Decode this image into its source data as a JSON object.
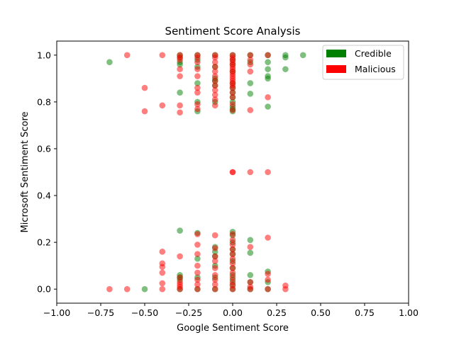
{
  "chart_data": {
    "type": "scatter",
    "title": "Sentiment Score Analysis",
    "xlabel": "Google Sentiment Score",
    "ylabel": "Microsoft Sentiment Score",
    "xlim": [
      -1.0,
      1.0
    ],
    "ylim": [
      -0.06,
      1.06
    ],
    "x_ticks": [
      -1.0,
      -0.75,
      -0.5,
      -0.25,
      0.0,
      0.25,
      0.5,
      0.75,
      1.0
    ],
    "x_tick_labels": [
      "−1.00",
      "−0.75",
      "−0.50",
      "−0.25",
      "0.00",
      "0.25",
      "0.50",
      "0.75",
      "1.00"
    ],
    "y_ticks": [
      0.0,
      0.2,
      0.4,
      0.6,
      0.8,
      1.0
    ],
    "y_tick_labels": [
      "0.0",
      "0.2",
      "0.4",
      "0.6",
      "0.8",
      "1.0"
    ],
    "grid": false,
    "legend_position": "top-right",
    "series": [
      {
        "name": "Credible",
        "color": "#008000",
        "alpha": 0.5,
        "points": [
          [
            -0.7,
            0.97
          ],
          [
            -0.5,
            0.0
          ],
          [
            -0.3,
            1.0
          ],
          [
            -0.3,
            0.99
          ],
          [
            -0.3,
            0.97
          ],
          [
            -0.3,
            0.96
          ],
          [
            -0.3,
            0.84
          ],
          [
            -0.3,
            0.25
          ],
          [
            -0.3,
            0.06
          ],
          [
            -0.3,
            0.05
          ],
          [
            -0.3,
            0.04
          ],
          [
            -0.3,
            0.0
          ],
          [
            -0.2,
            1.0
          ],
          [
            -0.2,
            0.98
          ],
          [
            -0.2,
            0.95
          ],
          [
            -0.2,
            0.88
          ],
          [
            -0.2,
            0.8
          ],
          [
            -0.2,
            0.76
          ],
          [
            -0.2,
            0.24
          ],
          [
            -0.2,
            0.13
          ],
          [
            -0.2,
            0.05
          ],
          [
            -0.2,
            0.0
          ],
          [
            -0.1,
            1.0
          ],
          [
            -0.1,
            0.95
          ],
          [
            -0.1,
            0.9
          ],
          [
            -0.1,
            0.89
          ],
          [
            -0.1,
            0.87
          ],
          [
            -0.1,
            0.8
          ],
          [
            -0.1,
            0.18
          ],
          [
            -0.1,
            0.16
          ],
          [
            -0.1,
            0.14
          ],
          [
            -0.1,
            0.1
          ],
          [
            -0.1,
            0.05
          ],
          [
            -0.1,
            0.0
          ],
          [
            0.0,
            1.0
          ],
          [
            0.0,
            0.98
          ],
          [
            0.0,
            0.96
          ],
          [
            0.0,
            0.93
          ],
          [
            0.0,
            0.88
          ],
          [
            0.0,
            0.86
          ],
          [
            0.0,
            0.84
          ],
          [
            0.0,
            0.82
          ],
          [
            0.0,
            0.8
          ],
          [
            0.0,
            0.78
          ],
          [
            0.0,
            0.77
          ],
          [
            0.0,
            0.76
          ],
          [
            0.0,
            0.245
          ],
          [
            0.0,
            0.23
          ],
          [
            0.0,
            0.2
          ],
          [
            0.0,
            0.17
          ],
          [
            0.0,
            0.15
          ],
          [
            0.0,
            0.12
          ],
          [
            0.0,
            0.09
          ],
          [
            0.0,
            0.06
          ],
          [
            0.0,
            0.04
          ],
          [
            0.0,
            0.02
          ],
          [
            0.0,
            0.0
          ],
          [
            0.1,
            1.0
          ],
          [
            0.1,
            0.97
          ],
          [
            0.1,
            0.88
          ],
          [
            0.1,
            0.835
          ],
          [
            0.1,
            0.21
          ],
          [
            0.1,
            0.155
          ],
          [
            0.1,
            0.06
          ],
          [
            0.1,
            0.03
          ],
          [
            0.1,
            0.0
          ],
          [
            0.2,
            1.0
          ],
          [
            0.2,
            0.97
          ],
          [
            0.2,
            0.94
          ],
          [
            0.2,
            0.91
          ],
          [
            0.2,
            0.9
          ],
          [
            0.2,
            0.78
          ],
          [
            0.2,
            0.075
          ],
          [
            0.2,
            0.03
          ],
          [
            0.2,
            0.0
          ],
          [
            0.3,
            1.0
          ],
          [
            0.3,
            0.99
          ],
          [
            0.3,
            0.94
          ],
          [
            0.4,
            1.0
          ]
        ]
      },
      {
        "name": "Malicious",
        "color": "#ff0000",
        "alpha": 0.5,
        "points": [
          [
            -0.7,
            0.0
          ],
          [
            -0.6,
            1.0
          ],
          [
            -0.6,
            0.0
          ],
          [
            -0.5,
            0.86
          ],
          [
            -0.5,
            0.76
          ],
          [
            -0.4,
            1.0
          ],
          [
            -0.4,
            0.785
          ],
          [
            -0.4,
            0.16
          ],
          [
            -0.4,
            0.11
          ],
          [
            -0.4,
            0.095
          ],
          [
            -0.4,
            0.07
          ],
          [
            -0.4,
            0.025
          ],
          [
            -0.4,
            0.0
          ],
          [
            -0.3,
            1.0
          ],
          [
            -0.3,
            0.99
          ],
          [
            -0.3,
            0.98
          ],
          [
            -0.3,
            0.94
          ],
          [
            -0.3,
            0.91
          ],
          [
            -0.3,
            0.785
          ],
          [
            -0.3,
            0.755
          ],
          [
            -0.3,
            0.14
          ],
          [
            -0.3,
            0.05
          ],
          [
            -0.3,
            0.03
          ],
          [
            -0.3,
            0.02
          ],
          [
            -0.3,
            0.01
          ],
          [
            -0.3,
            0.0
          ],
          [
            -0.2,
            1.0
          ],
          [
            -0.2,
            0.99
          ],
          [
            -0.2,
            0.97
          ],
          [
            -0.2,
            0.94
          ],
          [
            -0.2,
            0.91
          ],
          [
            -0.2,
            0.86
          ],
          [
            -0.2,
            0.84
          ],
          [
            -0.2,
            0.79
          ],
          [
            -0.2,
            0.77
          ],
          [
            -0.2,
            0.235
          ],
          [
            -0.2,
            0.19
          ],
          [
            -0.2,
            0.15
          ],
          [
            -0.2,
            0.1
          ],
          [
            -0.2,
            0.07
          ],
          [
            -0.2,
            0.04
          ],
          [
            -0.2,
            0.02
          ],
          [
            -0.2,
            0.0
          ],
          [
            -0.1,
            1.0
          ],
          [
            -0.1,
            0.99
          ],
          [
            -0.1,
            0.97
          ],
          [
            -0.1,
            0.95
          ],
          [
            -0.1,
            0.93
          ],
          [
            -0.1,
            0.91
          ],
          [
            -0.1,
            0.89
          ],
          [
            -0.1,
            0.87
          ],
          [
            -0.1,
            0.85
          ],
          [
            -0.1,
            0.83
          ],
          [
            -0.1,
            0.81
          ],
          [
            -0.1,
            0.785
          ],
          [
            -0.1,
            0.23
          ],
          [
            -0.1,
            0.175
          ],
          [
            -0.1,
            0.14
          ],
          [
            -0.1,
            0.12
          ],
          [
            -0.1,
            0.09
          ],
          [
            -0.1,
            0.06
          ],
          [
            -0.1,
            0.04
          ],
          [
            -0.1,
            0.02
          ],
          [
            -0.1,
            0.0
          ],
          [
            0.0,
            1.0
          ],
          [
            0.0,
            0.99
          ],
          [
            0.0,
            0.98
          ],
          [
            0.0,
            0.97
          ],
          [
            0.0,
            0.96
          ],
          [
            0.0,
            0.95
          ],
          [
            0.0,
            0.94
          ],
          [
            0.0,
            0.93
          ],
          [
            0.0,
            0.92
          ],
          [
            0.0,
            0.91
          ],
          [
            0.0,
            0.9
          ],
          [
            0.0,
            0.89
          ],
          [
            0.0,
            0.88
          ],
          [
            0.0,
            0.87
          ],
          [
            0.0,
            0.86
          ],
          [
            0.0,
            0.84
          ],
          [
            0.0,
            0.82
          ],
          [
            0.0,
            0.79
          ],
          [
            0.0,
            0.765
          ],
          [
            0.0,
            0.5
          ],
          [
            0.0,
            0.5
          ],
          [
            0.0,
            0.235
          ],
          [
            0.0,
            0.21
          ],
          [
            0.0,
            0.19
          ],
          [
            0.0,
            0.17
          ],
          [
            0.0,
            0.15
          ],
          [
            0.0,
            0.13
          ],
          [
            0.0,
            0.11
          ],
          [
            0.0,
            0.09
          ],
          [
            0.0,
            0.07
          ],
          [
            0.0,
            0.05
          ],
          [
            0.0,
            0.03
          ],
          [
            0.0,
            0.015
          ],
          [
            0.0,
            0.0
          ],
          [
            0.1,
            1.0
          ],
          [
            0.1,
            0.98
          ],
          [
            0.1,
            0.96
          ],
          [
            0.1,
            0.93
          ],
          [
            0.1,
            0.765
          ],
          [
            0.1,
            0.5
          ],
          [
            0.1,
            0.18
          ],
          [
            0.1,
            0.03
          ],
          [
            0.1,
            0.01
          ],
          [
            0.1,
            0.0
          ],
          [
            0.2,
            1.0
          ],
          [
            0.2,
            0.82
          ],
          [
            0.2,
            0.5
          ],
          [
            0.2,
            0.22
          ],
          [
            0.2,
            0.065
          ],
          [
            0.2,
            0.04
          ],
          [
            0.2,
            0.0
          ],
          [
            0.3,
            0.015
          ],
          [
            0.3,
            0.0
          ]
        ]
      }
    ]
  }
}
